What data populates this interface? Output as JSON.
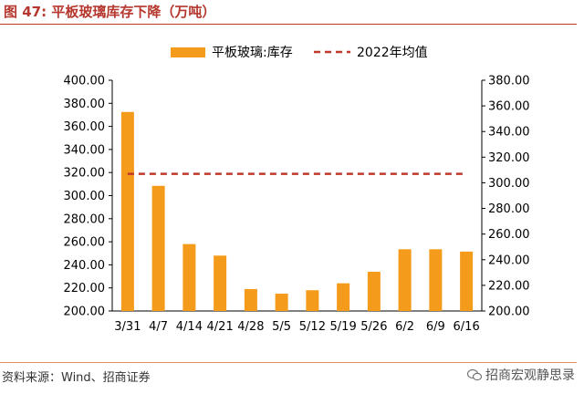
{
  "figure": {
    "label": "图 47:",
    "title": "平板玻璃库存下降（万吨）"
  },
  "source": "资料来源：Wind、招商证券",
  "watermark": "招商宏观静思录",
  "colors": {
    "title": "#b5372e",
    "bar": "#f59b1b",
    "ref_line": "#c0392b",
    "source_rule": "#e2905f"
  },
  "chart_data": {
    "type": "bar",
    "title": "",
    "xlabel": "",
    "ylabel": "",
    "categories": [
      "3/31",
      "4/7",
      "4/14",
      "4/21",
      "4/28",
      "5/5",
      "5/12",
      "5/19",
      "5/26",
      "6/2",
      "6/9",
      "6/16"
    ],
    "series": [
      {
        "name": "平板玻璃:库存",
        "type": "bar",
        "axis": "left",
        "values": [
          372.5,
          308.5,
          258.0,
          248.0,
          219.0,
          215.0,
          218.0,
          224.0,
          234.0,
          253.5,
          253.5,
          251.5
        ]
      },
      {
        "name": "2022年均值",
        "type": "line",
        "style": "dashed",
        "axis": "right",
        "values": [
          307,
          307,
          307,
          307,
          307,
          307,
          307,
          307,
          307,
          307,
          307,
          307
        ]
      }
    ],
    "ylim_left": [
      200,
      400
    ],
    "yticks_left": [
      "200.00",
      "220.00",
      "240.00",
      "260.00",
      "280.00",
      "300.00",
      "320.00",
      "340.00",
      "360.00",
      "380.00",
      "400.00"
    ],
    "ylim_right": [
      200,
      380
    ],
    "yticks_right": [
      "200.00",
      "220.00",
      "240.00",
      "260.00",
      "280.00",
      "300.00",
      "320.00",
      "340.00",
      "360.00",
      "380.00"
    ],
    "legend_position": "top",
    "grid": false
  }
}
